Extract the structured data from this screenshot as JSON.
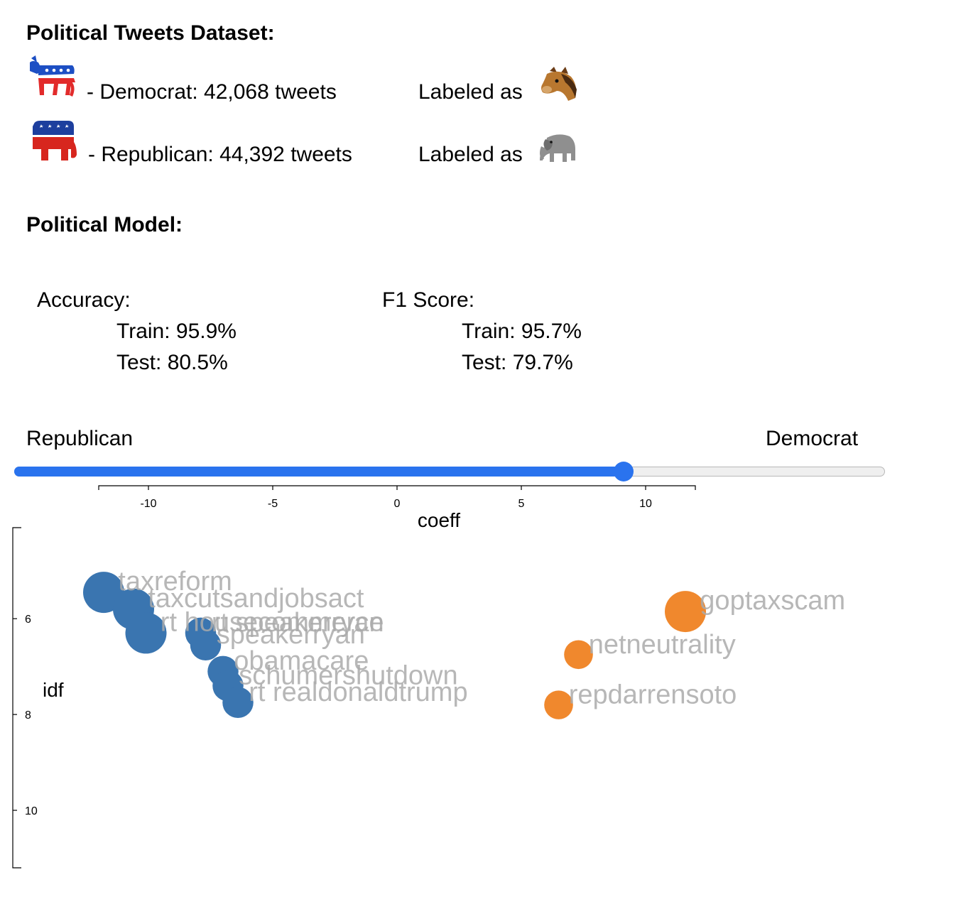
{
  "dataset": {
    "title": "Political Tweets Dataset:",
    "labeled_as_text": "Labeled as",
    "democrat": {
      "text": "- Democrat: 42,068 tweets",
      "logo_icon": "democrat-donkey-icon",
      "label_icon": "horse-face-icon"
    },
    "republican": {
      "text": "- Republican: 44,392 tweets",
      "logo_icon": "republican-elephant-icon",
      "label_icon": "elephant-icon"
    }
  },
  "model": {
    "title": "Political Model:",
    "accuracy": {
      "label": "Accuracy:",
      "train": "Train: 95.9%",
      "test": "Test: 80.5%"
    },
    "f1": {
      "label": "F1 Score:",
      "train": "Train: 95.7%",
      "test": "Test: 79.7%"
    }
  },
  "slider": {
    "left_label": "Republican",
    "right_label": "Democrat",
    "fraction": 0.7,
    "fill_color": "#2a73ee"
  },
  "chart_data": {
    "type": "scatter",
    "xlabel": "coeff",
    "ylabel": "idf",
    "xlim": [
      -12,
      12
    ],
    "ylim": [
      4.1,
      11.2
    ],
    "xticks": [
      -10,
      -5,
      0,
      5,
      10
    ],
    "yticks": [
      6,
      8,
      10
    ],
    "grid": false,
    "series": [
      {
        "color": "#3a75b0",
        "points": [
          {
            "label": "taxreform",
            "x": -11.8,
            "y": 5.45,
            "size": 1.0
          },
          {
            "label": "taxcutsandjobsact",
            "x": -10.6,
            "y": 5.8,
            "size": 1.0
          },
          {
            "label": "rt housecommerce",
            "x": -10.1,
            "y": 6.3,
            "size": 1.0
          },
          {
            "label": "rt speakerryan",
            "x": -7.9,
            "y": 6.3,
            "size": 0.75
          },
          {
            "label": "speakerryan",
            "x": -7.7,
            "y": 6.55,
            "size": 0.75
          },
          {
            "label": "obamacare",
            "x": -7.0,
            "y": 7.1,
            "size": 0.75
          },
          {
            "label": "schumershutdown",
            "x": -6.8,
            "y": 7.4,
            "size": 0.75
          },
          {
            "label": "rt realdonaldtrump",
            "x": -6.4,
            "y": 7.75,
            "size": 0.75
          }
        ]
      },
      {
        "color": "#f0882d",
        "points": [
          {
            "label": "goptaxscam",
            "x": 11.6,
            "y": 5.85,
            "size": 1.0
          },
          {
            "label": "netneutrality",
            "x": 7.3,
            "y": 6.75,
            "size": 0.7
          },
          {
            "label": "repdarrensoto",
            "x": 6.5,
            "y": 7.8,
            "size": 0.7
          }
        ]
      }
    ]
  }
}
